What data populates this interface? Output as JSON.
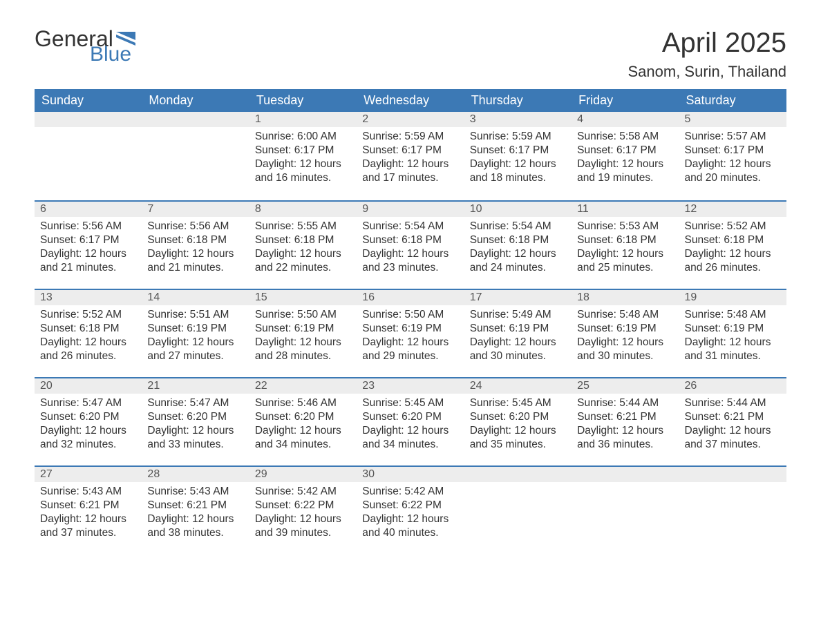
{
  "logo": {
    "text_general": "General",
    "text_blue": "Blue",
    "flag_color": "#3c79b5"
  },
  "title": "April 2025",
  "location": "Sanom, Surin, Thailand",
  "colors": {
    "header_bg": "#3c79b5",
    "header_text": "#ffffff",
    "daynum_bg": "#ededed",
    "week_border": "#3c79b5",
    "body_text": "#333333"
  },
  "day_names": [
    "Sunday",
    "Monday",
    "Tuesday",
    "Wednesday",
    "Thursday",
    "Friday",
    "Saturday"
  ],
  "weeks": [
    [
      {
        "day": "",
        "sunrise": "",
        "sunset": "",
        "daylight1": "",
        "daylight2": ""
      },
      {
        "day": "",
        "sunrise": "",
        "sunset": "",
        "daylight1": "",
        "daylight2": ""
      },
      {
        "day": "1",
        "sunrise": "Sunrise: 6:00 AM",
        "sunset": "Sunset: 6:17 PM",
        "daylight1": "Daylight: 12 hours",
        "daylight2": "and 16 minutes."
      },
      {
        "day": "2",
        "sunrise": "Sunrise: 5:59 AM",
        "sunset": "Sunset: 6:17 PM",
        "daylight1": "Daylight: 12 hours",
        "daylight2": "and 17 minutes."
      },
      {
        "day": "3",
        "sunrise": "Sunrise: 5:59 AM",
        "sunset": "Sunset: 6:17 PM",
        "daylight1": "Daylight: 12 hours",
        "daylight2": "and 18 minutes."
      },
      {
        "day": "4",
        "sunrise": "Sunrise: 5:58 AM",
        "sunset": "Sunset: 6:17 PM",
        "daylight1": "Daylight: 12 hours",
        "daylight2": "and 19 minutes."
      },
      {
        "day": "5",
        "sunrise": "Sunrise: 5:57 AM",
        "sunset": "Sunset: 6:17 PM",
        "daylight1": "Daylight: 12 hours",
        "daylight2": "and 20 minutes."
      }
    ],
    [
      {
        "day": "6",
        "sunrise": "Sunrise: 5:56 AM",
        "sunset": "Sunset: 6:17 PM",
        "daylight1": "Daylight: 12 hours",
        "daylight2": "and 21 minutes."
      },
      {
        "day": "7",
        "sunrise": "Sunrise: 5:56 AM",
        "sunset": "Sunset: 6:18 PM",
        "daylight1": "Daylight: 12 hours",
        "daylight2": "and 21 minutes."
      },
      {
        "day": "8",
        "sunrise": "Sunrise: 5:55 AM",
        "sunset": "Sunset: 6:18 PM",
        "daylight1": "Daylight: 12 hours",
        "daylight2": "and 22 minutes."
      },
      {
        "day": "9",
        "sunrise": "Sunrise: 5:54 AM",
        "sunset": "Sunset: 6:18 PM",
        "daylight1": "Daylight: 12 hours",
        "daylight2": "and 23 minutes."
      },
      {
        "day": "10",
        "sunrise": "Sunrise: 5:54 AM",
        "sunset": "Sunset: 6:18 PM",
        "daylight1": "Daylight: 12 hours",
        "daylight2": "and 24 minutes."
      },
      {
        "day": "11",
        "sunrise": "Sunrise: 5:53 AM",
        "sunset": "Sunset: 6:18 PM",
        "daylight1": "Daylight: 12 hours",
        "daylight2": "and 25 minutes."
      },
      {
        "day": "12",
        "sunrise": "Sunrise: 5:52 AM",
        "sunset": "Sunset: 6:18 PM",
        "daylight1": "Daylight: 12 hours",
        "daylight2": "and 26 minutes."
      }
    ],
    [
      {
        "day": "13",
        "sunrise": "Sunrise: 5:52 AM",
        "sunset": "Sunset: 6:18 PM",
        "daylight1": "Daylight: 12 hours",
        "daylight2": "and 26 minutes."
      },
      {
        "day": "14",
        "sunrise": "Sunrise: 5:51 AM",
        "sunset": "Sunset: 6:19 PM",
        "daylight1": "Daylight: 12 hours",
        "daylight2": "and 27 minutes."
      },
      {
        "day": "15",
        "sunrise": "Sunrise: 5:50 AM",
        "sunset": "Sunset: 6:19 PM",
        "daylight1": "Daylight: 12 hours",
        "daylight2": "and 28 minutes."
      },
      {
        "day": "16",
        "sunrise": "Sunrise: 5:50 AM",
        "sunset": "Sunset: 6:19 PM",
        "daylight1": "Daylight: 12 hours",
        "daylight2": "and 29 minutes."
      },
      {
        "day": "17",
        "sunrise": "Sunrise: 5:49 AM",
        "sunset": "Sunset: 6:19 PM",
        "daylight1": "Daylight: 12 hours",
        "daylight2": "and 30 minutes."
      },
      {
        "day": "18",
        "sunrise": "Sunrise: 5:48 AM",
        "sunset": "Sunset: 6:19 PM",
        "daylight1": "Daylight: 12 hours",
        "daylight2": "and 30 minutes."
      },
      {
        "day": "19",
        "sunrise": "Sunrise: 5:48 AM",
        "sunset": "Sunset: 6:19 PM",
        "daylight1": "Daylight: 12 hours",
        "daylight2": "and 31 minutes."
      }
    ],
    [
      {
        "day": "20",
        "sunrise": "Sunrise: 5:47 AM",
        "sunset": "Sunset: 6:20 PM",
        "daylight1": "Daylight: 12 hours",
        "daylight2": "and 32 minutes."
      },
      {
        "day": "21",
        "sunrise": "Sunrise: 5:47 AM",
        "sunset": "Sunset: 6:20 PM",
        "daylight1": "Daylight: 12 hours",
        "daylight2": "and 33 minutes."
      },
      {
        "day": "22",
        "sunrise": "Sunrise: 5:46 AM",
        "sunset": "Sunset: 6:20 PM",
        "daylight1": "Daylight: 12 hours",
        "daylight2": "and 34 minutes."
      },
      {
        "day": "23",
        "sunrise": "Sunrise: 5:45 AM",
        "sunset": "Sunset: 6:20 PM",
        "daylight1": "Daylight: 12 hours",
        "daylight2": "and 34 minutes."
      },
      {
        "day": "24",
        "sunrise": "Sunrise: 5:45 AM",
        "sunset": "Sunset: 6:20 PM",
        "daylight1": "Daylight: 12 hours",
        "daylight2": "and 35 minutes."
      },
      {
        "day": "25",
        "sunrise": "Sunrise: 5:44 AM",
        "sunset": "Sunset: 6:21 PM",
        "daylight1": "Daylight: 12 hours",
        "daylight2": "and 36 minutes."
      },
      {
        "day": "26",
        "sunrise": "Sunrise: 5:44 AM",
        "sunset": "Sunset: 6:21 PM",
        "daylight1": "Daylight: 12 hours",
        "daylight2": "and 37 minutes."
      }
    ],
    [
      {
        "day": "27",
        "sunrise": "Sunrise: 5:43 AM",
        "sunset": "Sunset: 6:21 PM",
        "daylight1": "Daylight: 12 hours",
        "daylight2": "and 37 minutes."
      },
      {
        "day": "28",
        "sunrise": "Sunrise: 5:43 AM",
        "sunset": "Sunset: 6:21 PM",
        "daylight1": "Daylight: 12 hours",
        "daylight2": "and 38 minutes."
      },
      {
        "day": "29",
        "sunrise": "Sunrise: 5:42 AM",
        "sunset": "Sunset: 6:22 PM",
        "daylight1": "Daylight: 12 hours",
        "daylight2": "and 39 minutes."
      },
      {
        "day": "30",
        "sunrise": "Sunrise: 5:42 AM",
        "sunset": "Sunset: 6:22 PM",
        "daylight1": "Daylight: 12 hours",
        "daylight2": "and 40 minutes."
      },
      {
        "day": "",
        "sunrise": "",
        "sunset": "",
        "daylight1": "",
        "daylight2": ""
      },
      {
        "day": "",
        "sunrise": "",
        "sunset": "",
        "daylight1": "",
        "daylight2": ""
      },
      {
        "day": "",
        "sunrise": "",
        "sunset": "",
        "daylight1": "",
        "daylight2": ""
      }
    ]
  ]
}
